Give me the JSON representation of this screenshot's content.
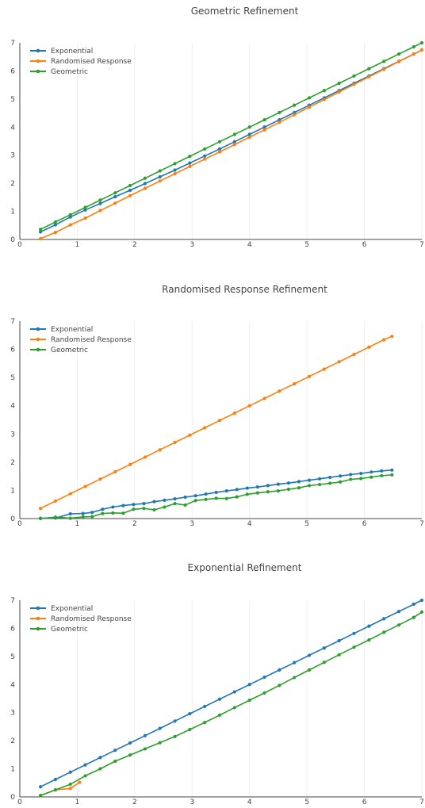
{
  "colors": {
    "exponential": "#1f77b4",
    "randomised_response": "#ff7f0e",
    "geometric": "#2ca02c",
    "grid": "#eeeeee",
    "axis": "#444444"
  },
  "chart_data": [
    {
      "type": "line",
      "title": "Geometric Refinement",
      "xlabel": "",
      "ylabel": "",
      "xlim": [
        0,
        7
      ],
      "ylim": [
        0,
        7
      ],
      "xticks": [
        "0",
        "1",
        "2",
        "3",
        "4",
        "5",
        "6",
        "7"
      ],
      "yticks": [
        "0",
        "1",
        "2",
        "3",
        "4",
        "5",
        "6",
        "7"
      ],
      "grid": true,
      "legend": "top-left",
      "series": [
        {
          "name": "Exponential",
          "color": "#1f77b4",
          "x": [
            0.36,
            0.62,
            0.88,
            1.14,
            1.4,
            1.66,
            1.92,
            2.18,
            2.44,
            2.7,
            2.96,
            3.22,
            3.48,
            3.74,
            4.0,
            4.26,
            4.52,
            4.78,
            5.04,
            5.3,
            5.56,
            5.82,
            6.08,
            6.34,
            6.6,
            6.86,
            7.0
          ],
          "y": [
            0.27,
            0.52,
            0.8,
            1.05,
            1.28,
            1.52,
            1.75,
            1.99,
            2.23,
            2.47,
            2.72,
            2.97,
            3.22,
            3.48,
            3.74,
            4.0,
            4.26,
            4.52,
            4.78,
            5.04,
            5.3,
            5.56,
            5.82,
            6.08,
            6.34,
            6.6,
            6.75
          ]
        },
        {
          "name": "Randomised Response",
          "color": "#ff7f0e",
          "x": [
            0.36,
            0.62,
            0.88,
            1.14,
            1.4,
            1.66,
            1.92,
            2.18,
            2.44,
            2.7,
            2.96,
            3.22,
            3.48,
            3.74,
            4.0,
            4.26,
            4.52,
            4.78,
            5.04,
            5.3,
            5.56,
            5.82,
            6.08,
            6.34,
            6.6,
            6.86,
            7.0
          ],
          "y": [
            0.03,
            0.25,
            0.52,
            0.76,
            1.03,
            1.29,
            1.56,
            1.82,
            2.08,
            2.34,
            2.6,
            2.86,
            3.12,
            3.38,
            3.64,
            3.9,
            4.17,
            4.44,
            4.71,
            4.98,
            5.25,
            5.52,
            5.79,
            6.06,
            6.33,
            6.6,
            6.75
          ]
        },
        {
          "name": "Geometric",
          "color": "#2ca02c",
          "x": [
            0.36,
            0.62,
            0.88,
            1.14,
            1.4,
            1.66,
            1.92,
            2.18,
            2.44,
            2.7,
            2.96,
            3.22,
            3.48,
            3.74,
            4.0,
            4.26,
            4.52,
            4.78,
            5.04,
            5.3,
            5.56,
            5.82,
            6.08,
            6.34,
            6.6,
            6.86,
            7.0
          ],
          "y": [
            0.36,
            0.62,
            0.88,
            1.14,
            1.4,
            1.66,
            1.92,
            2.18,
            2.44,
            2.7,
            2.96,
            3.22,
            3.48,
            3.74,
            4.0,
            4.26,
            4.52,
            4.78,
            5.04,
            5.3,
            5.56,
            5.82,
            6.08,
            6.34,
            6.6,
            6.86,
            7.0
          ]
        }
      ]
    },
    {
      "type": "line",
      "title": "Randomised Response Refinement",
      "xlabel": "",
      "ylabel": "",
      "xlim": [
        0,
        7
      ],
      "ylim": [
        0,
        7
      ],
      "xticks": [
        "0",
        "1",
        "2",
        "3",
        "4",
        "5",
        "6",
        "7"
      ],
      "yticks": [
        "0",
        "1",
        "2",
        "3",
        "4",
        "5",
        "6",
        "7"
      ],
      "grid": true,
      "legend": "top-left",
      "series": [
        {
          "name": "Exponential",
          "color": "#1f77b4",
          "x": [
            0.36,
            0.62,
            0.88,
            1.1,
            1.26,
            1.44,
            1.62,
            1.8,
            1.98,
            2.16,
            2.34,
            2.52,
            2.7,
            2.88,
            3.06,
            3.24,
            3.42,
            3.6,
            3.78,
            3.96,
            4.14,
            4.32,
            4.5,
            4.68,
            4.86,
            5.04,
            5.22,
            5.4,
            5.58,
            5.76,
            5.94,
            6.12,
            6.3,
            6.48
          ],
          "y": [
            0.01,
            0.02,
            0.17,
            0.18,
            0.22,
            0.33,
            0.41,
            0.46,
            0.5,
            0.53,
            0.6,
            0.65,
            0.7,
            0.76,
            0.81,
            0.87,
            0.93,
            0.98,
            1.03,
            1.08,
            1.12,
            1.17,
            1.22,
            1.26,
            1.31,
            1.36,
            1.41,
            1.46,
            1.51,
            1.56,
            1.6,
            1.65,
            1.69,
            1.72
          ]
        },
        {
          "name": "Randomised Response",
          "color": "#ff7f0e",
          "x": [
            0.36,
            0.62,
            0.88,
            1.14,
            1.4,
            1.66,
            1.92,
            2.18,
            2.44,
            2.7,
            2.96,
            3.22,
            3.48,
            3.74,
            4.0,
            4.26,
            4.52,
            4.78,
            5.04,
            5.3,
            5.56,
            5.82,
            6.08,
            6.34,
            6.48
          ],
          "y": [
            0.36,
            0.62,
            0.88,
            1.14,
            1.4,
            1.66,
            1.92,
            2.18,
            2.44,
            2.7,
            2.96,
            3.22,
            3.48,
            3.74,
            4.0,
            4.26,
            4.52,
            4.78,
            5.04,
            5.3,
            5.56,
            5.82,
            6.08,
            6.34,
            6.46
          ]
        },
        {
          "name": "Geometric",
          "color": "#2ca02c",
          "x": [
            0.36,
            0.62,
            0.88,
            1.1,
            1.26,
            1.44,
            1.62,
            1.8,
            1.98,
            2.16,
            2.34,
            2.52,
            2.7,
            2.88,
            3.06,
            3.24,
            3.42,
            3.6,
            3.78,
            3.96,
            4.14,
            4.32,
            4.5,
            4.68,
            4.86,
            5.04,
            5.22,
            5.4,
            5.58,
            5.76,
            5.94,
            6.12,
            6.3,
            6.48
          ],
          "y": [
            0.0,
            0.05,
            0.01,
            0.06,
            0.07,
            0.18,
            0.2,
            0.19,
            0.33,
            0.36,
            0.31,
            0.41,
            0.53,
            0.48,
            0.64,
            0.68,
            0.72,
            0.71,
            0.77,
            0.86,
            0.91,
            0.95,
            0.98,
            1.04,
            1.09,
            1.17,
            1.21,
            1.25,
            1.3,
            1.39,
            1.42,
            1.47,
            1.52,
            1.55
          ]
        }
      ]
    },
    {
      "type": "line",
      "title": "Exponential Refinement",
      "xlabel": "",
      "ylabel": "",
      "xlim": [
        0,
        7
      ],
      "ylim": [
        0,
        7
      ],
      "xticks": [
        "0",
        "1",
        "2",
        "3",
        "4",
        "5",
        "6",
        "7"
      ],
      "yticks": [
        "0",
        "1",
        "2",
        "3",
        "4",
        "5",
        "6",
        "7"
      ],
      "grid": true,
      "legend": "top-left",
      "series": [
        {
          "name": "Exponential",
          "color": "#1f77b4",
          "x": [
            0.36,
            0.62,
            0.88,
            1.14,
            1.4,
            1.66,
            1.92,
            2.18,
            2.44,
            2.7,
            2.96,
            3.22,
            3.48,
            3.74,
            4.0,
            4.26,
            4.52,
            4.78,
            5.04,
            5.3,
            5.56,
            5.82,
            6.08,
            6.34,
            6.6,
            6.86,
            7.0
          ],
          "y": [
            0.36,
            0.62,
            0.88,
            1.14,
            1.4,
            1.66,
            1.92,
            2.18,
            2.44,
            2.7,
            2.96,
            3.22,
            3.48,
            3.74,
            4.0,
            4.26,
            4.52,
            4.78,
            5.04,
            5.3,
            5.56,
            5.82,
            6.08,
            6.34,
            6.6,
            6.86,
            7.0
          ]
        },
        {
          "name": "Randomised Response",
          "color": "#ff7f0e",
          "x": [
            0.36,
            0.62,
            0.88,
            1.04
          ],
          "y": [
            0.05,
            0.25,
            0.3,
            0.52
          ]
        },
        {
          "name": "Geometric",
          "color": "#2ca02c",
          "x": [
            0.36,
            0.62,
            0.88,
            1.14,
            1.4,
            1.66,
            1.92,
            2.18,
            2.44,
            2.7,
            2.96,
            3.22,
            3.48,
            3.74,
            4.0,
            4.26,
            4.52,
            4.78,
            5.04,
            5.3,
            5.56,
            5.82,
            6.08,
            6.34,
            6.6,
            6.86,
            7.0
          ],
          "y": [
            0.05,
            0.25,
            0.45,
            0.75,
            1.0,
            1.27,
            1.49,
            1.71,
            1.93,
            2.15,
            2.4,
            2.65,
            2.91,
            3.18,
            3.44,
            3.7,
            3.97,
            4.25,
            4.52,
            4.79,
            5.06,
            5.33,
            5.59,
            5.86,
            6.12,
            6.39,
            6.58
          ]
        }
      ]
    }
  ]
}
